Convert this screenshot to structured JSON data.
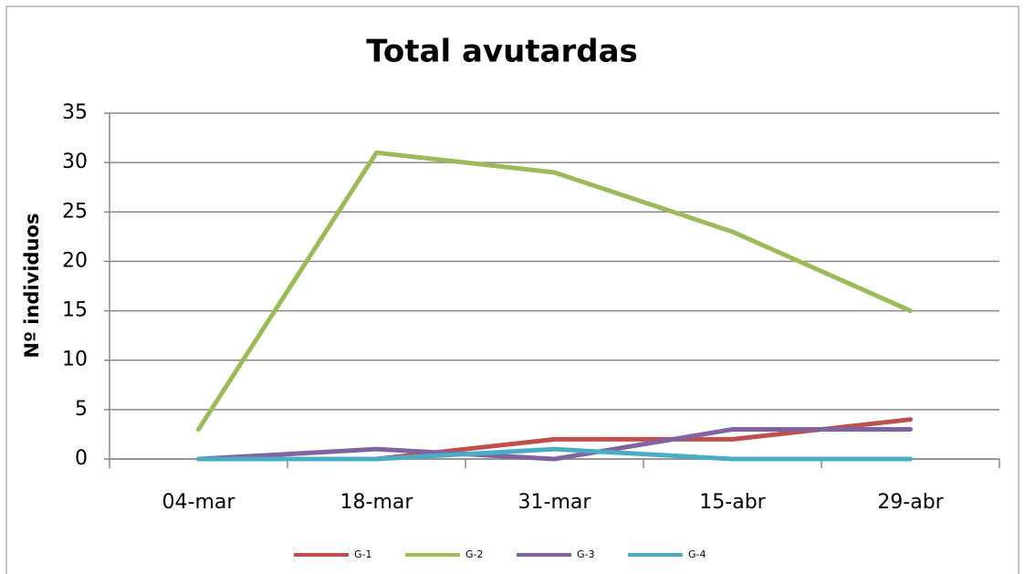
{
  "chart_data": {
    "type": "line",
    "title": "Total avutardas",
    "y_label": "Nº individuos",
    "categories": [
      "04-mar",
      "18-mar",
      "31-mar",
      "15-abr",
      "29-abr"
    ],
    "series": [
      {
        "name": "G-1",
        "color": "#c0504d",
        "values": [
          0,
          0,
          2,
          2,
          4
        ]
      },
      {
        "name": "G-2",
        "color": "#9bbb59",
        "values": [
          3,
          31,
          29,
          23,
          15
        ]
      },
      {
        "name": "G-3",
        "color": "#8064a2",
        "values": [
          0,
          1,
          0,
          3,
          3
        ]
      },
      {
        "name": "G-4",
        "color": "#4bacc6",
        "values": [
          0,
          0,
          1,
          0,
          0
        ]
      }
    ],
    "ylim": [
      0,
      35
    ],
    "yticks": [
      0,
      5,
      10,
      15,
      20,
      25,
      30,
      35
    ],
    "grid": true,
    "legend": "bottom"
  }
}
